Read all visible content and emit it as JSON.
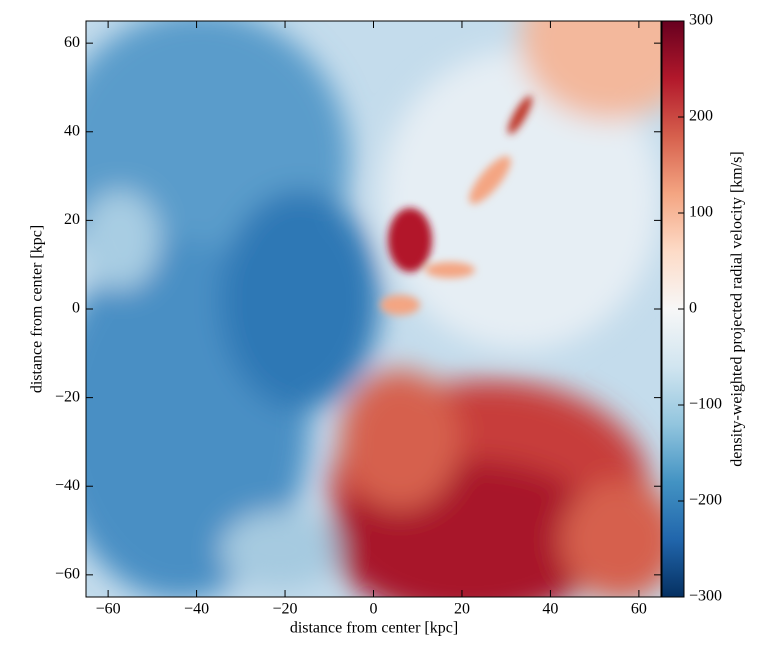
{
  "chart_data": {
    "type": "heatmap",
    "xlabel": "distance from center [kpc]",
    "ylabel": "distance from center [kpc]",
    "xlim": [
      -65,
      65
    ],
    "ylim": [
      -65,
      65
    ],
    "xticks": [
      {
        "value": -60,
        "label": "−60"
      },
      {
        "value": -40,
        "label": "−40"
      },
      {
        "value": -20,
        "label": "−20"
      },
      0,
      20,
      40,
      60
    ],
    "yticks": [
      {
        "value": -60,
        "label": "−60"
      },
      {
        "value": -40,
        "label": "−40"
      },
      {
        "value": -20,
        "label": "−20"
      },
      0,
      20,
      40,
      60
    ],
    "colormap": "RdBu_r",
    "colorbar": {
      "label": "density-weighted projected radial velocity [km/s]",
      "lim": [
        -300,
        300
      ],
      "ticks": [
        {
          "value": -300,
          "label": "−300"
        },
        {
          "value": -200,
          "label": "−200"
        },
        {
          "value": -100,
          "label": "−100"
        },
        0,
        100,
        200,
        300
      ]
    }
  }
}
